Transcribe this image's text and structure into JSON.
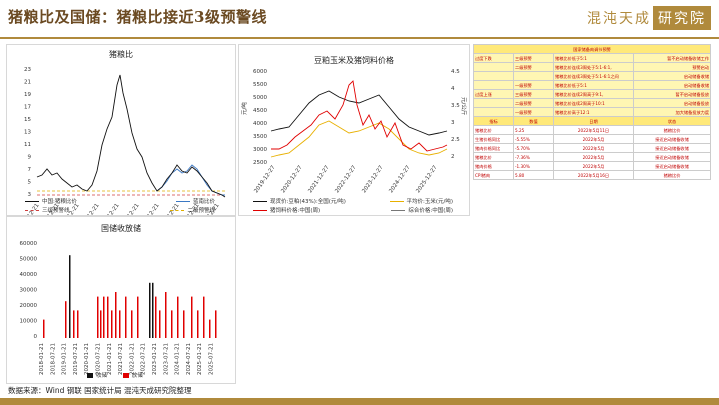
{
  "header": {
    "title": "猪粮比及国储：猪粮比接近3级预警线",
    "logo_text": "混沌天成",
    "logo_box": "研究院"
  },
  "charts": {
    "ratio": {
      "title": "猪粮比",
      "yticks": [
        "23",
        "21",
        "19",
        "17",
        "15",
        "13",
        "11",
        "9",
        "7",
        "5",
        "3"
      ],
      "xticks": [
        "2016-12-21",
        "2017-12-21",
        "2018-12-21",
        "2019-12-21",
        "2020-12-21",
        "2021-12-21",
        "2022-12-21",
        "2023-12-21",
        "2024-12-21",
        "2025-12-21"
      ],
      "legend": [
        "中国:猪粮比价",
        "蓝南比价",
        "三级预警线",
        "二级预警线"
      ]
    },
    "prices": {
      "title": "豆粕玉米及猪饲料价格",
      "yunit_left": "元/吨",
      "yunit_right": "元/公斤",
      "yticks_left": [
        "6000",
        "5500",
        "5000",
        "4500",
        "4000",
        "3500",
        "3000",
        "2500"
      ],
      "yticks_right": [
        "4.5",
        "4",
        "3.5",
        "3",
        "2.5",
        "2"
      ],
      "xticks": [
        "2019-12-27",
        "2020-12-27",
        "2021-12-27",
        "2022-12-27",
        "2023-12-27",
        "2024-12-27",
        "2025-12-27"
      ],
      "legend": [
        "现货价:豆粕(43%):全国(元/吨)",
        "平均价:玉米(元/吨)",
        "猪饲料价格:中国(周)",
        "综合价格:中国(周)"
      ]
    },
    "reserve": {
      "title": "国储收放储",
      "yticks": [
        "60000",
        "50000",
        "40000",
        "30000",
        "20000",
        "10000",
        "0"
      ],
      "xticks": [
        "2018-01-21",
        "2018-07-21",
        "2019-01-21",
        "2019-07-21",
        "2020-01-21",
        "2020-07-21",
        "2021-01-21",
        "2021-07-21",
        "2022-01-21",
        "2022-07-21",
        "2023-01-21",
        "2023-07-21",
        "2024-01-21",
        "2024-07-21",
        "2025-01-21",
        "2025-07-21"
      ],
      "legend": [
        "收储",
        "放储"
      ]
    }
  },
  "info_table": {
    "title": "国家储备肉调节预警",
    "rows": [
      [
        "过度下跌",
        "三级预警",
        "猪粮比价低于5:1",
        "暂不启动储备收储工作"
      ],
      [
        "",
        "二级预警",
        "猪粮比价连续3周处于5:1-6:1,",
        "预警启动"
      ],
      [
        "",
        "",
        "猪粮比价连续3周处于5:1-6:1之间",
        "启动储备收储"
      ],
      [
        "",
        "一级预警",
        "猪粮比价低于5:1",
        "启动储备收储"
      ],
      [
        "过度上涨",
        "三级预警",
        "猪粮比价连续2周高于9:1,",
        "暂不启动储备投放"
      ],
      [
        "",
        "二级预警",
        "猪粮比价连续2周高于10:1",
        "启动储备投放"
      ],
      [
        "",
        "一级预警",
        "猪粮比价高于12:1",
        "加大储备投放力度"
      ]
    ],
    "status_head": [
      "指标",
      "数值",
      "日期",
      "状态"
    ],
    "status_rows": [
      [
        "猪粮比价",
        "5.25",
        "2022年5月11日",
        "猪粮比价"
      ],
      [
        "生猪价格同比",
        "-5.55%",
        "2022年5月",
        "接近启动储备收储"
      ],
      [
        "猪肉价格同比",
        "-5.70%",
        "2022年5月",
        "接近启动储备收储"
      ],
      [
        "猪粮比价",
        "-7.36%",
        "2022年5月",
        "接近启动储备收储"
      ],
      [
        "猪肉价格",
        "-1.30%",
        "2022年5月",
        "接近启动储备收储"
      ],
      [
        "CPI猪肉",
        "5.80",
        "2022年5月16日",
        "猪粮比价"
      ]
    ]
  },
  "footer": {
    "source": "数据来源：Wind 钢联 国家统计局 混沌天成研究院整理"
  }
}
